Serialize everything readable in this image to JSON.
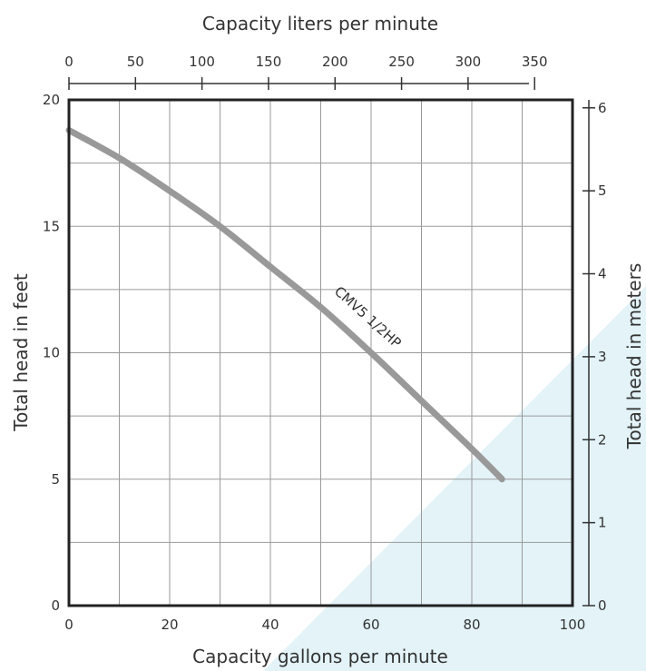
{
  "chart_data": {
    "type": "line",
    "x_bottom": {
      "label": "Capacity gallons per minute",
      "range": [
        0,
        100
      ],
      "ticks": [
        0,
        20,
        40,
        60,
        80,
        100
      ],
      "tick_labels": [
        "0",
        "20",
        "40",
        "60",
        "80",
        "100"
      ],
      "minor_grid_step": 10
    },
    "x_top": {
      "label": "Capacity liters per minute",
      "range": [
        0,
        378.5
      ],
      "ticks": [
        0,
        50,
        100,
        150,
        200,
        250,
        300,
        350
      ],
      "tick_labels": [
        "0",
        "50",
        "100",
        "150",
        "200",
        "250",
        "300",
        "350"
      ]
    },
    "y_left": {
      "label": "Total head in feet",
      "range": [
        0,
        20
      ],
      "ticks": [
        0,
        5,
        10,
        15,
        20
      ],
      "tick_labels": [
        "0",
        "5",
        "10",
        "15",
        "20"
      ],
      "minor_grid_step": 2.5
    },
    "y_right": {
      "label": "Total head in meters",
      "range": [
        0,
        6.096
      ],
      "ticks": [
        0,
        1,
        2,
        3,
        4,
        5,
        6
      ],
      "tick_labels": [
        "0",
        "1",
        "2",
        "3",
        "4",
        "5",
        "6"
      ]
    },
    "series": [
      {
        "name": "CMV5 1/2HP",
        "color": "#999999",
        "x": [
          0,
          10,
          20,
          30,
          40,
          50,
          60,
          70,
          80,
          86
        ],
        "y": [
          18.8,
          17.7,
          16.4,
          15.0,
          13.4,
          11.8,
          10.0,
          8.1,
          6.2,
          5.0
        ]
      }
    ],
    "grid": true,
    "background_accent_color": "#e3f3f8"
  }
}
